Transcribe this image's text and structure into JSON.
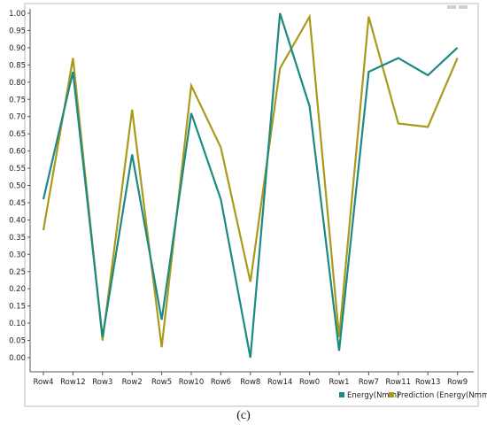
{
  "caption": "(c)",
  "colors": {
    "energy": "#1a8a82",
    "prediction": "#a99a1c",
    "axis": "#555555",
    "frame": "#bdbdbd"
  },
  "chart_data": {
    "type": "line",
    "title": "",
    "xlabel": "",
    "ylabel": "",
    "categories": [
      "Row4",
      "Row12",
      "Row3",
      "Row2",
      "Row5",
      "Row10",
      "Row6",
      "Row8",
      "Row14",
      "Row0",
      "Row1",
      "Row7",
      "Row11",
      "Row13",
      "Row9"
    ],
    "ylim": [
      0,
      1
    ],
    "yticks": [
      "0.00",
      "0.05",
      "0.10",
      "0.15",
      "0.20",
      "0.25",
      "0.30",
      "0.35",
      "0.40",
      "0.45",
      "0.50",
      "0.55",
      "0.60",
      "0.65",
      "0.70",
      "0.75",
      "0.80",
      "0.85",
      "0.90",
      "0.95",
      "1.00"
    ],
    "grid": false,
    "legend_position": "bottom-right",
    "series": [
      {
        "name": "Energy(Nmm)",
        "color": "#1a8a82",
        "values": [
          0.46,
          0.83,
          0.06,
          0.59,
          0.11,
          0.71,
          0.46,
          0.0,
          1.0,
          0.73,
          0.02,
          0.83,
          0.87,
          0.82,
          0.9
        ]
      },
      {
        "name": "Prediction (Energy(Nmm))",
        "color": "#a99a1c",
        "values": [
          0.37,
          0.87,
          0.05,
          0.72,
          0.03,
          0.79,
          0.61,
          0.22,
          0.84,
          0.99,
          0.06,
          0.99,
          0.68,
          0.67,
          0.87
        ]
      }
    ]
  }
}
